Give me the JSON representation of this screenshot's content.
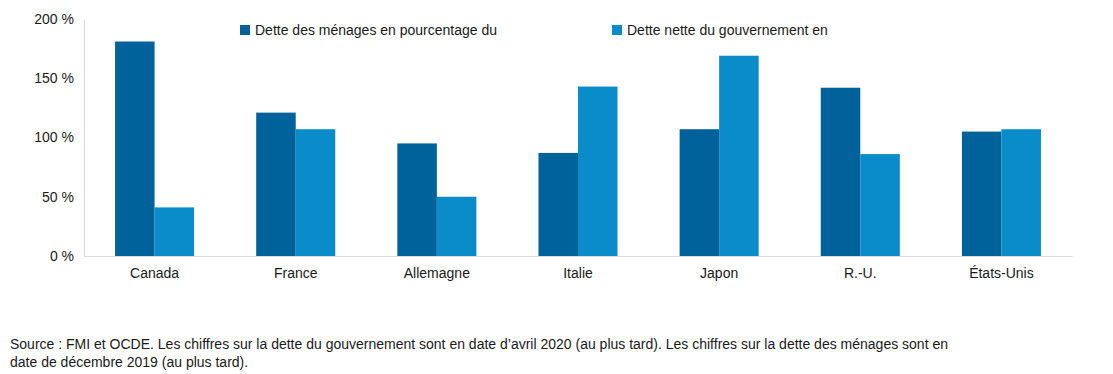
{
  "chart_data": {
    "type": "bar",
    "categories": [
      "Canada",
      "France",
      "Allemagne",
      "Italie",
      "Japon",
      "R.-U.",
      "États-Unis"
    ],
    "series": [
      {
        "name": "Dette des ménages en pourcentage du",
        "color": "#00629b",
        "values": [
          181,
          121,
          95,
          87,
          107,
          142,
          105
        ]
      },
      {
        "name": "Dette nette du gouvernement en",
        "color": "#0a8ccb",
        "values": [
          41,
          107,
          50,
          143,
          169,
          86,
          107
        ]
      }
    ],
    "ylim": [
      0,
      200
    ],
    "yticks": [
      {
        "value": 0,
        "label": "0 %"
      },
      {
        "value": 50,
        "label": "50 %"
      },
      {
        "value": 100,
        "label": "100 %"
      },
      {
        "value": 150,
        "label": "150 %"
      },
      {
        "value": 200,
        "label": "200 %"
      }
    ],
    "grid": false,
    "legend": "top",
    "annotations": [
      "Source : FMI et OCDE. Les chiffres sur la dette du gouvernement sont en date d’avril 2020 (au plus tard). Les chiffres sur la dette des ménages sont en",
      "date de décembre 2019 (au plus tard)."
    ]
  }
}
